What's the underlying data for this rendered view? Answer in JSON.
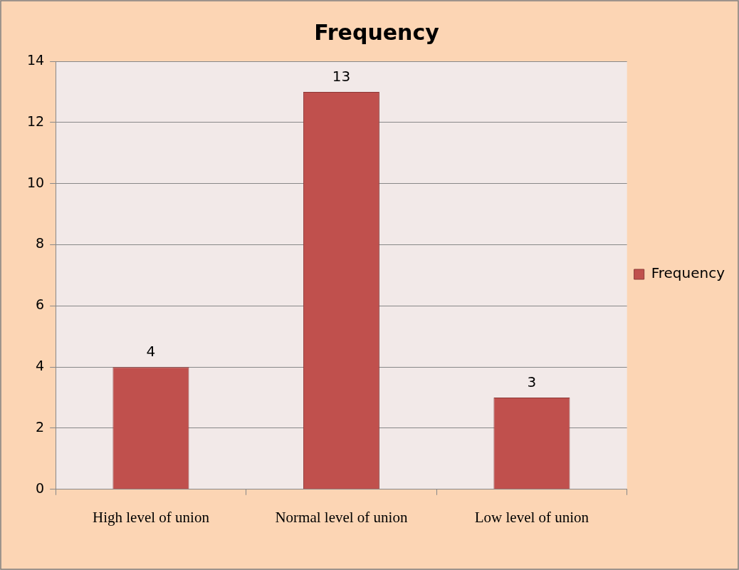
{
  "chart_data": {
    "type": "bar",
    "title": "Frequency",
    "categories": [
      "High level of union",
      "Normal level of union",
      "Low level of union"
    ],
    "series": [
      {
        "name": "Frequency",
        "color": "#c0504d",
        "values": [
          4,
          13,
          3
        ]
      }
    ],
    "ylim": [
      0,
      14
    ],
    "yticks": [
      0,
      2,
      4,
      6,
      8,
      10,
      12,
      14
    ],
    "grid": "y",
    "legend": "right",
    "data_labels": true
  }
}
